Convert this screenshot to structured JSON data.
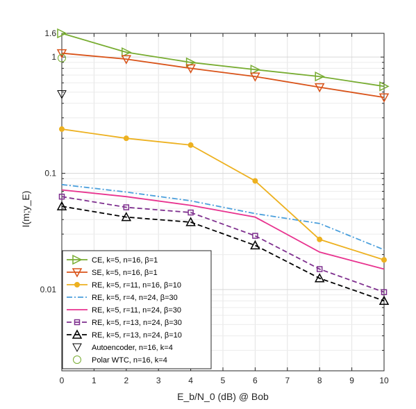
{
  "chart_data": {
    "type": "line",
    "xlabel": "E_b/N_0 (dB)  @ Bob",
    "ylabel": "I(m;y_E)",
    "x_ticks": [
      "0",
      "1",
      "2",
      "3",
      "4",
      "5",
      "6",
      "7",
      "8",
      "9",
      "10"
    ],
    "y_ticks": [
      {
        "value": 0.01,
        "label": "0.01"
      },
      {
        "value": 0.1,
        "label": "0.1"
      },
      {
        "value": 1,
        "label": "1"
      },
      {
        "value": 1.6,
        "label": "1.6"
      }
    ],
    "xlim": [
      0,
      10
    ],
    "ylim": [
      0.002,
      1.6
    ],
    "yscale": "log",
    "grid": true,
    "legend_position": "bottom-left",
    "series": [
      {
        "name": "CE, k=5, n=16,    β=1",
        "color": "#77ac30",
        "style": "solid",
        "marker": "triangle-right",
        "x": [
          0,
          2,
          4,
          6,
          8,
          10
        ],
        "y": [
          1.6,
          1.1,
          0.9,
          0.78,
          0.68,
          0.56
        ]
      },
      {
        "name": "SE, k=5, n=16,    β=1",
        "color": "#d95319",
        "style": "solid",
        "marker": "triangle-down",
        "x": [
          0,
          2,
          4,
          6,
          8,
          10
        ],
        "y": [
          1.08,
          0.96,
          0.8,
          0.68,
          0.55,
          0.45
        ]
      },
      {
        "name": "RE, k=5, r=11, n=16,    β=10",
        "color": "#edb120",
        "style": "solid",
        "marker": "dot",
        "x": [
          0,
          2,
          4,
          6,
          8,
          10
        ],
        "y": [
          0.24,
          0.2,
          0.175,
          0.086,
          0.027,
          0.018
        ]
      },
      {
        "name": "RE, k=5, r=4, n=24,    β=30",
        "color": "#4a9fdc",
        "style": "dashdot",
        "marker": "none",
        "x": [
          0,
          2,
          4,
          6,
          8,
          10
        ],
        "y": [
          0.08,
          0.069,
          0.058,
          0.045,
          0.037,
          0.022
        ]
      },
      {
        "name": "RE, k=5, r=11, n=24,    β=30",
        "color": "#e8338f",
        "style": "solid",
        "marker": "none",
        "x": [
          0,
          2,
          4,
          6,
          8,
          10
        ],
        "y": [
          0.072,
          0.063,
          0.053,
          0.042,
          0.021,
          0.015
        ]
      },
      {
        "name": "RE, k=5, r=13, n=24,    β=30",
        "color": "#7e2f8e",
        "style": "dashed",
        "marker": "square",
        "x": [
          0,
          2,
          4,
          6,
          8,
          10
        ],
        "y": [
          0.063,
          0.051,
          0.046,
          0.029,
          0.015,
          0.0095
        ]
      },
      {
        "name": "RE, k=5, r=13, n=24,    β=10",
        "color": "#000000",
        "style": "dashed",
        "marker": "triangle-up",
        "x": [
          0,
          2,
          4,
          6,
          8,
          10
        ],
        "y": [
          0.052,
          0.042,
          0.038,
          0.024,
          0.0125,
          0.008
        ]
      },
      {
        "name": "Autoencoder, n=16, k=4",
        "color": "#000000",
        "style": "none",
        "marker": "triangle-down-open",
        "x": [
          0
        ],
        "y": [
          0.48
        ]
      },
      {
        "name": "Polar WTC, n=16, k=4",
        "color": "#77ac30",
        "style": "none",
        "marker": "circle-open",
        "x": [
          0
        ],
        "y": [
          0.98
        ]
      }
    ]
  }
}
